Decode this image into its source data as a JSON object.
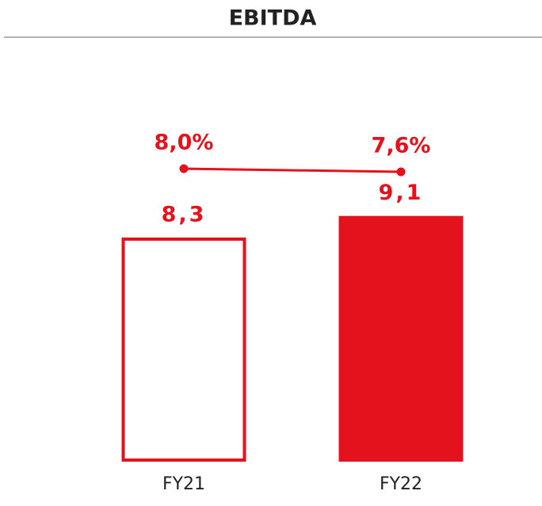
{
  "chart_data": {
    "type": "bar",
    "title": "EBITDA",
    "categories": [
      "FY21",
      "FY22"
    ],
    "series": [
      {
        "type": "bar",
        "color": "#e3121c",
        "values": [
          8.3,
          9.1
        ],
        "value_labels": [
          "8,3",
          "9,1"
        ],
        "fill": [
          "outline",
          "solid"
        ]
      },
      {
        "type": "line",
        "color": "#e3121c",
        "values": [
          8.0,
          7.6
        ],
        "value_labels": [
          "8,0%",
          "7,6%"
        ]
      }
    ]
  }
}
